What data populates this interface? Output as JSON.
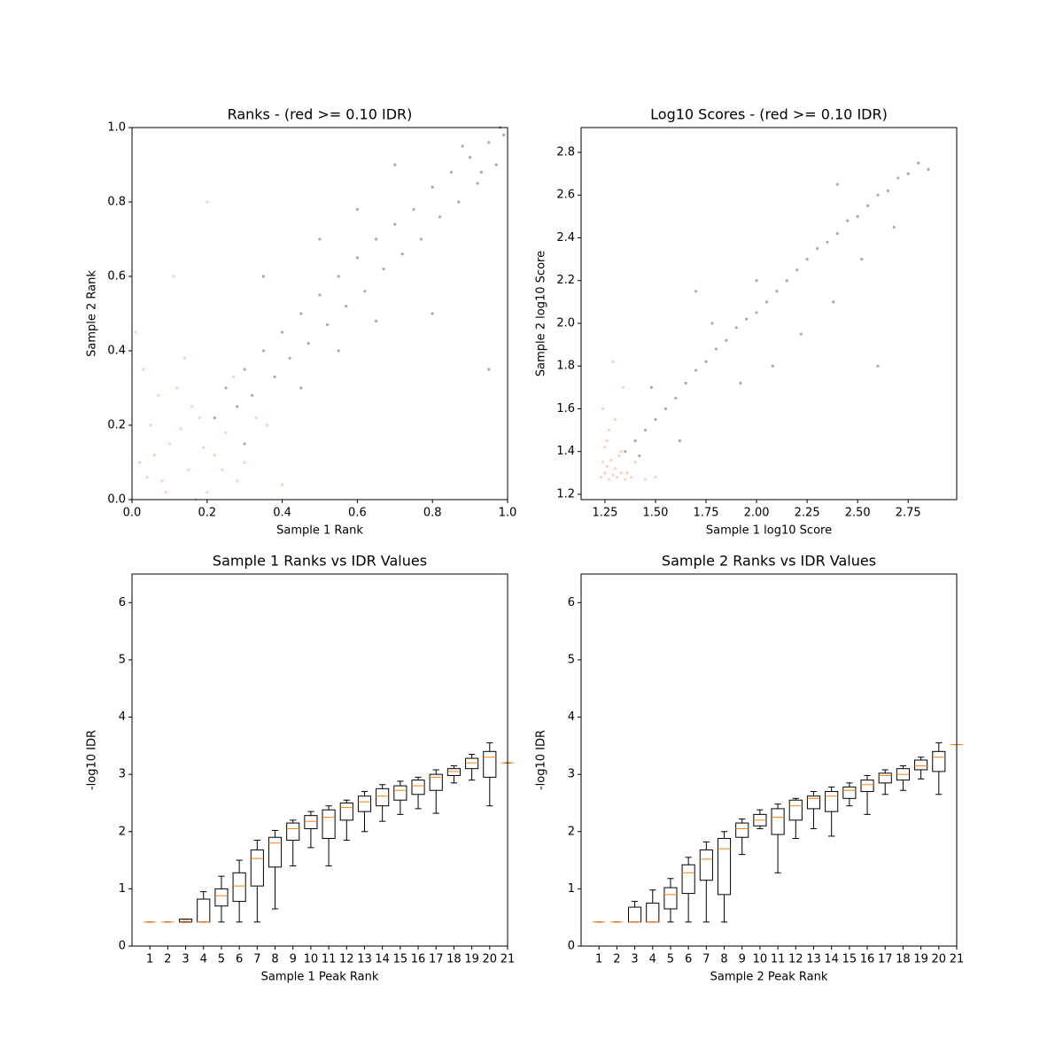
{
  "chart_data": [
    {
      "type": "scatter",
      "title": "Ranks - (red >= 0.10 IDR)",
      "xlabel": "Sample 1 Rank",
      "ylabel": "Sample 2 Rank",
      "xlim": [
        0,
        1
      ],
      "ylim": [
        0,
        1
      ],
      "xticks": [
        {
          "value": 0,
          "label": "0.0"
        },
        0.2,
        0.4,
        0.6,
        0.8,
        {
          "value": 1,
          "label": "1.0"
        }
      ],
      "yticks": [
        {
          "value": 0,
          "label": "0.0"
        },
        0.2,
        0.4,
        0.6,
        0.8,
        {
          "value": 1,
          "label": "1.0"
        }
      ],
      "series": [
        {
          "color": "#f4a582",
          "x": [
            0.02,
            0.05,
            0.08,
            0.1,
            0.12,
            0.15,
            0.18,
            0.2,
            0.22,
            0.25,
            0.28,
            0.3,
            0.03,
            0.07,
            0.14,
            0.17,
            0.33,
            0.01,
            0.11,
            0.2,
            0.4,
            0.36,
            0.06,
            0.16,
            0.09,
            0.24,
            0.13,
            0.04,
            0.19,
            0.27
          ],
          "y": [
            0.1,
            0.2,
            0.05,
            0.15,
            0.3,
            0.08,
            0.22,
            0.02,
            0.12,
            0.18,
            0.05,
            0.1,
            0.35,
            0.28,
            0.38,
            0.0,
            0.22,
            0.45,
            0.6,
            0.8,
            0.04,
            0.2,
            0.12,
            0.25,
            0.02,
            0.08,
            0.19,
            0.06,
            0.14,
            0.33
          ]
        },
        {
          "color": "#555555",
          "x": [
            0.22,
            0.25,
            0.28,
            0.3,
            0.32,
            0.35,
            0.38,
            0.4,
            0.42,
            0.45,
            0.47,
            0.5,
            0.52,
            0.55,
            0.57,
            0.6,
            0.62,
            0.65,
            0.67,
            0.7,
            0.72,
            0.75,
            0.77,
            0.8,
            0.82,
            0.85,
            0.87,
            0.9,
            0.92,
            0.95,
            0.97,
            0.99,
            0.6,
            0.45,
            0.8,
            0.35,
            0.7,
            0.5,
            0.95,
            0.3,
            0.88,
            0.93,
            0.98,
            0.55,
            0.65
          ],
          "y": [
            0.22,
            0.3,
            0.25,
            0.35,
            0.28,
            0.4,
            0.33,
            0.45,
            0.38,
            0.5,
            0.42,
            0.55,
            0.47,
            0.6,
            0.52,
            0.65,
            0.56,
            0.7,
            0.62,
            0.74,
            0.66,
            0.78,
            0.7,
            0.84,
            0.76,
            0.88,
            0.8,
            0.92,
            0.85,
            0.96,
            0.9,
            0.98,
            0.78,
            0.3,
            0.5,
            0.6,
            0.9,
            0.7,
            0.35,
            0.15,
            0.95,
            0.88,
            1.0,
            0.4,
            0.48
          ]
        }
      ]
    },
    {
      "type": "scatter",
      "title": "Log10 Scores - (red >= 0.10 IDR)",
      "xlabel": "Sample 1 log10 Score",
      "ylabel": "Sample 2 log10 Score",
      "xlim": [
        1.132,
        2.99
      ],
      "ylim": [
        1.175,
        2.916
      ],
      "xticks": [
        1.25,
        {
          "value": 1.5,
          "label": "1.50"
        },
        1.75,
        {
          "value": 2,
          "label": "2.00"
        },
        2.25,
        {
          "value": 2.5,
          "label": "2.50"
        },
        2.75
      ],
      "yticks": [
        1.2,
        1.4,
        1.6,
        1.8,
        {
          "value": 2,
          "label": "2.0"
        },
        2.2,
        2.4,
        2.6,
        2.8
      ],
      "series": [
        {
          "color": "#f4a582",
          "x": [
            1.23,
            1.25,
            1.27,
            1.29,
            1.31,
            1.33,
            1.35,
            1.24,
            1.26,
            1.28,
            1.3,
            1.32,
            1.36,
            1.38,
            1.4,
            1.25,
            1.27,
            1.24,
            1.3,
            1.34,
            1.45,
            1.5,
            1.29,
            1.26,
            1.33
          ],
          "y": [
            1.28,
            1.3,
            1.27,
            1.29,
            1.28,
            1.3,
            1.27,
            1.35,
            1.33,
            1.36,
            1.32,
            1.38,
            1.3,
            1.28,
            1.35,
            1.42,
            1.5,
            1.6,
            1.55,
            1.7,
            1.27,
            1.28,
            1.82,
            1.45,
            1.4
          ]
        },
        {
          "color": "#555555",
          "x": [
            1.35,
            1.4,
            1.45,
            1.5,
            1.55,
            1.6,
            1.65,
            1.7,
            1.75,
            1.8,
            1.85,
            1.9,
            1.95,
            2.0,
            2.05,
            2.1,
            2.15,
            2.2,
            2.25,
            2.3,
            2.35,
            2.4,
            2.45,
            2.5,
            2.55,
            2.6,
            2.65,
            2.7,
            2.75,
            2.8,
            2.85,
            1.48,
            1.62,
            1.78,
            1.92,
            2.08,
            2.22,
            2.38,
            2.52,
            2.68,
            1.42,
            2.6,
            1.7,
            2.0,
            2.4
          ],
          "y": [
            1.4,
            1.45,
            1.5,
            1.55,
            1.6,
            1.65,
            1.72,
            1.78,
            1.82,
            1.88,
            1.92,
            1.98,
            2.02,
            2.05,
            2.1,
            2.15,
            2.2,
            2.25,
            2.3,
            2.35,
            2.38,
            2.42,
            2.48,
            2.5,
            2.55,
            2.6,
            2.62,
            2.68,
            2.7,
            2.75,
            2.72,
            1.7,
            1.45,
            2.0,
            1.72,
            1.8,
            1.95,
            2.1,
            2.3,
            2.45,
            1.38,
            1.8,
            2.15,
            2.2,
            2.65
          ]
        }
      ]
    },
    {
      "type": "box",
      "title": "Sample 1 Ranks vs IDR Values",
      "xlabel": "Sample 1 Peak Rank",
      "ylabel": "-log10 IDR",
      "xlim": [
        0,
        21
      ],
      "ylim": [
        0,
        6.5
      ],
      "yticks": [
        0,
        1,
        2,
        3,
        4,
        5,
        6
      ],
      "categories": [
        "1",
        "2",
        "3",
        "4",
        "5",
        "6",
        "7",
        "8",
        "9",
        "10",
        "11",
        "12",
        "13",
        "14",
        "15",
        "16",
        "17",
        "18",
        "19",
        "20",
        "21"
      ],
      "boxes": [
        [
          0.42,
          0.42,
          0.42,
          0.42,
          0.42
        ],
        [
          0.42,
          0.42,
          0.42,
          0.42,
          0.42
        ],
        [
          0.42,
          0.42,
          0.43,
          0.47,
          0.47
        ],
        [
          0.42,
          0.42,
          0.42,
          0.82,
          0.95
        ],
        [
          0.42,
          0.7,
          0.88,
          1.0,
          1.22
        ],
        [
          0.42,
          0.78,
          1.05,
          1.28,
          1.5
        ],
        [
          0.42,
          1.05,
          1.53,
          1.68,
          1.85
        ],
        [
          0.65,
          1.38,
          1.8,
          1.9,
          2.02
        ],
        [
          1.4,
          1.85,
          2.05,
          2.15,
          2.2
        ],
        [
          1.72,
          2.05,
          2.18,
          2.28,
          2.35
        ],
        [
          1.4,
          1.88,
          2.25,
          2.38,
          2.45
        ],
        [
          1.85,
          2.2,
          2.42,
          2.5,
          2.55
        ],
        [
          2.0,
          2.35,
          2.52,
          2.62,
          2.7
        ],
        [
          2.18,
          2.45,
          2.62,
          2.75,
          2.82
        ],
        [
          2.3,
          2.55,
          2.72,
          2.8,
          2.88
        ],
        [
          2.4,
          2.65,
          2.8,
          2.9,
          2.95
        ],
        [
          2.32,
          2.72,
          2.95,
          3.0,
          3.08
        ],
        [
          2.85,
          2.98,
          3.05,
          3.1,
          3.15
        ],
        [
          2.9,
          3.1,
          3.2,
          3.28,
          3.35
        ],
        [
          2.45,
          2.95,
          3.3,
          3.4,
          3.55
        ],
        [
          3.2,
          3.2,
          3.2,
          3.2,
          3.2
        ]
      ]
    },
    {
      "type": "box",
      "title": "Sample 2 Ranks vs IDR Values",
      "xlabel": "Sample 2 Peak Rank",
      "ylabel": "-log10 IDR",
      "xlim": [
        0,
        21
      ],
      "ylim": [
        0,
        6.5
      ],
      "yticks": [
        0,
        1,
        2,
        3,
        4,
        5,
        6
      ],
      "categories": [
        "1",
        "2",
        "3",
        "4",
        "5",
        "6",
        "7",
        "8",
        "9",
        "10",
        "11",
        "12",
        "13",
        "14",
        "15",
        "16",
        "17",
        "18",
        "19",
        "20",
        "21"
      ],
      "boxes": [
        [
          0.42,
          0.42,
          0.42,
          0.42,
          0.42
        ],
        [
          0.42,
          0.42,
          0.42,
          0.42,
          0.42
        ],
        [
          0.42,
          0.42,
          0.42,
          0.68,
          0.78
        ],
        [
          0.42,
          0.42,
          0.42,
          0.75,
          0.98
        ],
        [
          0.42,
          0.65,
          0.9,
          1.02,
          1.18
        ],
        [
          0.42,
          0.92,
          1.28,
          1.42,
          1.55
        ],
        [
          0.42,
          1.15,
          1.52,
          1.68,
          1.82
        ],
        [
          0.42,
          0.9,
          1.7,
          1.88,
          2.0
        ],
        [
          1.6,
          1.9,
          2.05,
          2.15,
          2.22
        ],
        [
          2.05,
          2.1,
          2.2,
          2.3,
          2.38
        ],
        [
          1.28,
          1.95,
          2.25,
          2.4,
          2.48
        ],
        [
          1.88,
          2.2,
          2.45,
          2.55,
          2.58
        ],
        [
          2.05,
          2.4,
          2.58,
          2.62,
          2.7
        ],
        [
          1.92,
          2.35,
          2.62,
          2.7,
          2.78
        ],
        [
          2.45,
          2.58,
          2.72,
          2.78,
          2.85
        ],
        [
          2.3,
          2.7,
          2.82,
          2.9,
          2.98
        ],
        [
          2.65,
          2.85,
          2.98,
          3.02,
          3.08
        ],
        [
          2.72,
          2.9,
          3.0,
          3.1,
          3.15
        ],
        [
          2.92,
          3.08,
          3.15,
          3.25,
          3.3
        ],
        [
          2.65,
          3.05,
          3.3,
          3.4,
          3.55
        ],
        [
          3.52,
          3.52,
          3.52,
          3.52,
          3.52
        ]
      ]
    }
  ]
}
